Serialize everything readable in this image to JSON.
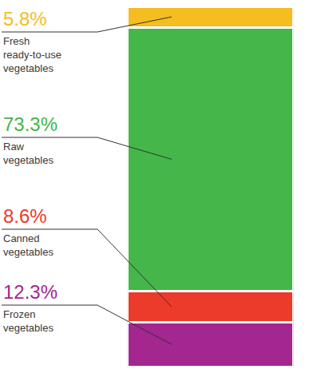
{
  "chart_data": {
    "type": "bar",
    "stacked": true,
    "categories": [
      null
    ],
    "ylim": [
      0,
      100
    ],
    "tick_labels": false,
    "grid": false,
    "series": [
      {
        "name": "Frozen vegetables",
        "color": "#a4268f",
        "values": [
          12.3
        ],
        "value_labels": [
          "12.3%"
        ]
      },
      {
        "name": "Canned vegetables",
        "color": "#ec3a2b",
        "values": [
          8.6
        ],
        "value_labels": [
          "8.6%"
        ]
      },
      {
        "name": "Raw vegetables",
        "color": "#45b649",
        "values": [
          73.3
        ],
        "value_labels": [
          "73.3%"
        ]
      },
      {
        "name": "Fresh ready-to-use vegetables",
        "color": "#f5bd1f",
        "values": [
          5.8
        ],
        "value_labels": [
          "5.8%"
        ]
      }
    ]
  }
}
